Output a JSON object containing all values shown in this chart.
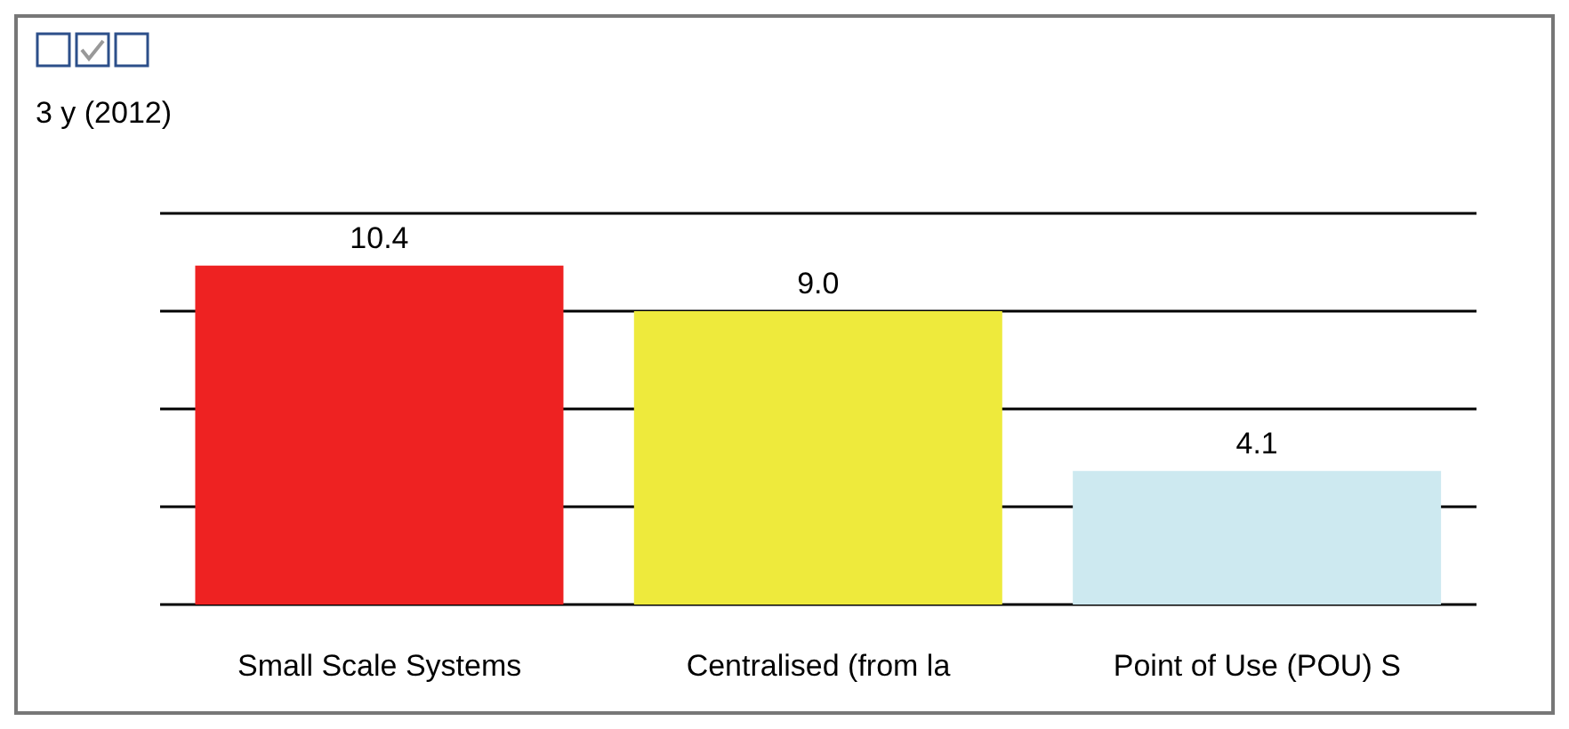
{
  "chart_data": {
    "type": "bar",
    "title": "3 y (2012)",
    "categories": [
      "Small Scale Systems",
      "Centralised (from la",
      "Point of Use (POU) S"
    ],
    "values": [
      10.4,
      9.0,
      4.1
    ],
    "value_labels": [
      "10.4",
      "9.0",
      "4.1"
    ],
    "colors": [
      "#ee2222",
      "#eeea3c",
      "#cde9f0"
    ],
    "grid": true,
    "tick_labels": "x"
  }
}
